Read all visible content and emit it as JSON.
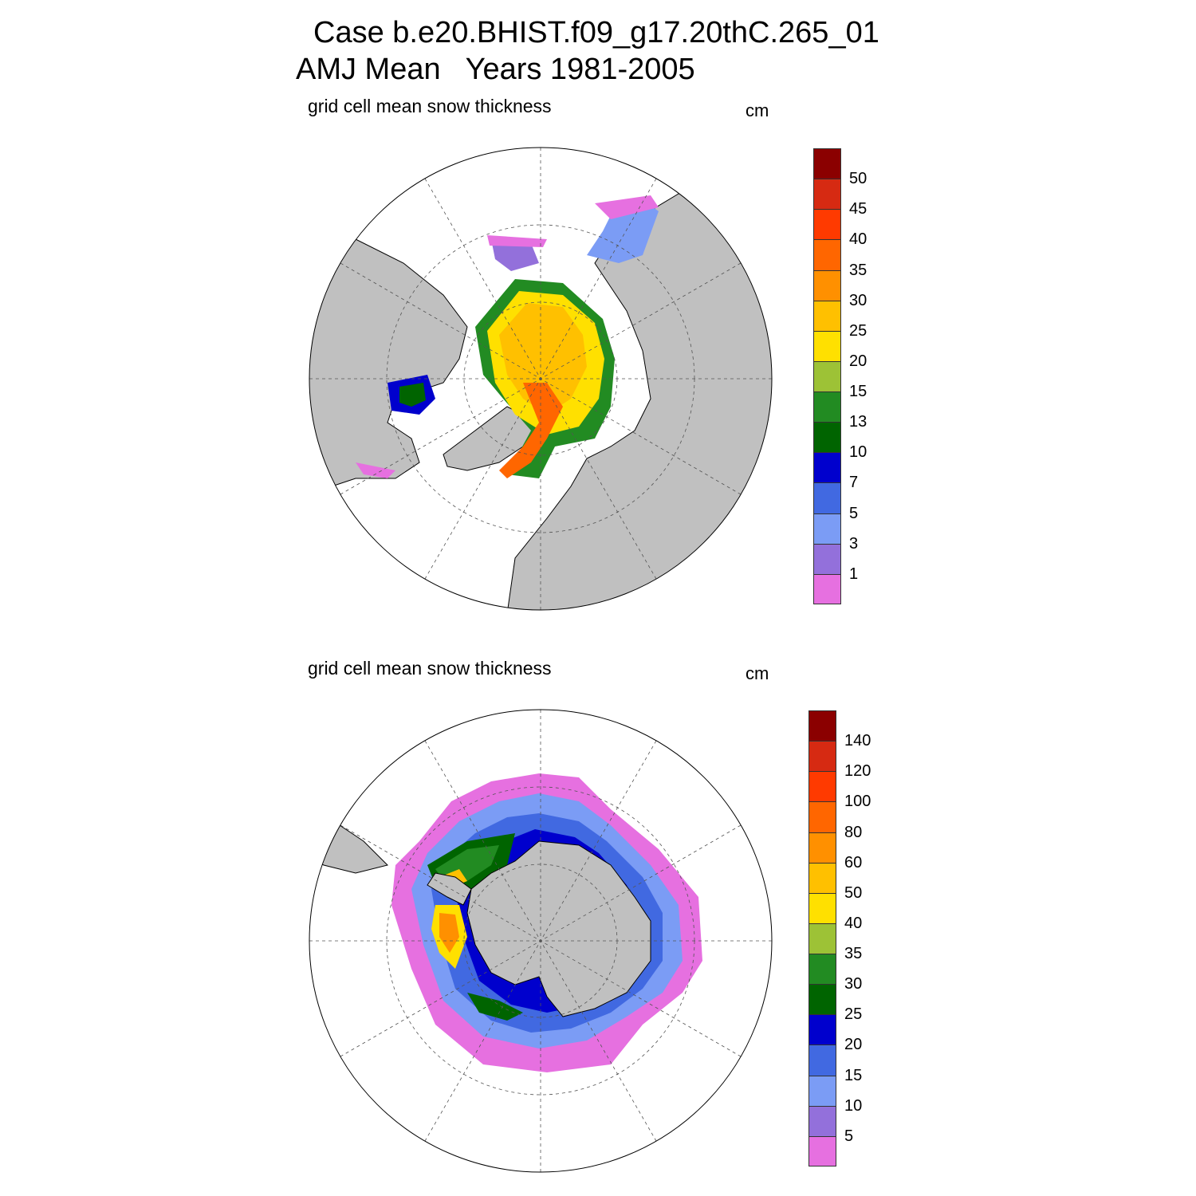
{
  "title": {
    "line1": "Case b.e20.BHIST.f09_g17.20thC.265_01",
    "line2": "AMJ Mean   Years 1981-2005"
  },
  "panels": [
    {
      "id": "north",
      "label": "grid cell mean snow thickness",
      "units": "cm",
      "hemisphere": "north",
      "colorbar": {
        "colors": [
          "#8b0000",
          "#d62a12",
          "#ff3a00",
          "#ff6600",
          "#ff9000",
          "#ffc000",
          "#ffe000",
          "#9dc236",
          "#228b22",
          "#006400",
          "#0000cd",
          "#4169e1",
          "#7b9cf5",
          "#9370db",
          "#e670e0"
        ],
        "labels": [
          "50",
          "45",
          "40",
          "35",
          "30",
          "25",
          "20",
          "15",
          "13",
          "10",
          "7",
          "5",
          "3",
          "1"
        ]
      }
    },
    {
      "id": "south",
      "label": "grid cell mean snow thickness",
      "units": "cm",
      "hemisphere": "south",
      "colorbar": {
        "colors": [
          "#8b0000",
          "#d62a12",
          "#ff3a00",
          "#ff6600",
          "#ff9000",
          "#ffc000",
          "#ffe000",
          "#9dc236",
          "#228b22",
          "#006400",
          "#0000cd",
          "#4169e1",
          "#7b9cf5",
          "#9370db",
          "#e670e0"
        ],
        "labels": [
          "140",
          "120",
          "100",
          "80",
          "60",
          "50",
          "40",
          "35",
          "30",
          "25",
          "20",
          "15",
          "10",
          "5"
        ]
      }
    }
  ]
}
